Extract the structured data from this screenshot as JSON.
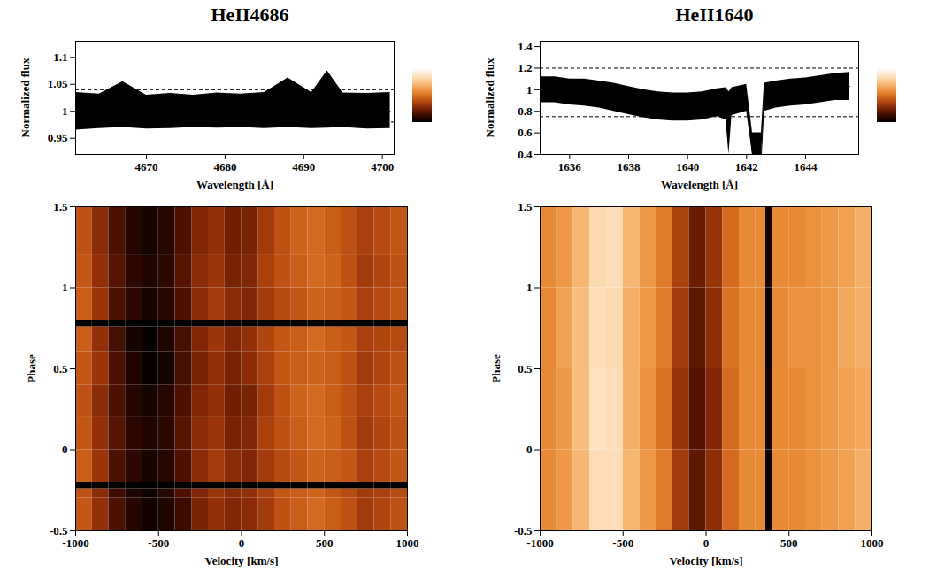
{
  "chart_data": [
    {
      "type": "line",
      "title": "HeII4686",
      "x_label": "Wavelength [Å]",
      "y_label": "Normalized flux",
      "xlim": [
        4661,
        4701.5
      ],
      "xticks": [
        4670,
        4680,
        4690,
        4700
      ],
      "ylim": [
        0.92,
        1.13
      ],
      "yticks": [
        0.95,
        1,
        1.05,
        1.1
      ],
      "x": [
        4661,
        4664,
        4667,
        4670,
        4673,
        4676,
        4679,
        4682,
        4685,
        4688,
        4691,
        4693,
        4695,
        4698,
        4701
      ],
      "values": [
        1.0,
        1.0,
        1.0,
        0.999,
        1.0,
        1.0,
        1.0,
        1.0,
        1.0,
        1.001,
        1.0,
        1.001,
        1.0,
        1.0,
        1.0
      ],
      "lower": [
        0.965,
        0.968,
        0.97,
        0.967,
        0.968,
        0.97,
        0.969,
        0.97,
        0.968,
        0.97,
        0.968,
        0.969,
        0.97,
        0.967,
        0.968
      ],
      "upper": [
        1.035,
        1.032,
        1.055,
        1.03,
        1.033,
        1.03,
        1.034,
        1.032,
        1.035,
        1.062,
        1.035,
        1.075,
        1.034,
        1.033,
        1.035
      ],
      "reference_levels": [
        1.04,
        0.98
      ],
      "color": "#000000"
    },
    {
      "type": "heatmap",
      "x_label": "Velocity [km/s]",
      "y_label": "Phase",
      "xlim": [
        -1000,
        1000
      ],
      "xticks": [
        -1000,
        -500,
        0,
        500,
        1000
      ],
      "ylim": [
        -0.5,
        1.5
      ],
      "yticks": [
        -0.5,
        0,
        0.5,
        1,
        1.5
      ],
      "colorbar_range": [
        0.98,
        1.04
      ],
      "velocity_edges": [
        -1000,
        -900,
        -800,
        -700,
        -600,
        -500,
        -400,
        -300,
        -200,
        -100,
        0,
        100,
        200,
        300,
        400,
        500,
        600,
        700,
        800,
        900,
        1000
      ],
      "phase_edges": [
        -0.5,
        -0.3,
        -0.24,
        -0.2,
        0,
        0.2,
        0.4,
        0.6,
        0.76,
        0.8,
        1.0,
        1.2,
        1.5
      ],
      "cells": [
        [
          1.005,
          0.998,
          0.99,
          0.985,
          0.982,
          0.984,
          0.988,
          0.995,
          0.998,
          0.996,
          0.997,
          1.0,
          1.004,
          1.006,
          1.008,
          1.006,
          1.004,
          1.0,
          1.002,
          1.004
        ],
        [
          1.004,
          0.997,
          0.988,
          0.984,
          0.982,
          0.985,
          0.99,
          0.996,
          0.999,
          0.997,
          0.998,
          1.001,
          1.005,
          1.006,
          1.007,
          1.005,
          1.003,
          1.0,
          1.001,
          1.003
        ],
        [
          0.98,
          0.98,
          0.98,
          0.98,
          0.98,
          0.98,
          0.98,
          0.98,
          0.98,
          0.98,
          0.98,
          0.98,
          0.98,
          0.98,
          0.98,
          0.98,
          0.98,
          0.98,
          0.98,
          0.98
        ],
        [
          1.006,
          0.999,
          0.99,
          0.986,
          0.983,
          0.985,
          0.99,
          0.997,
          1.0,
          0.997,
          0.996,
          1.0,
          1.003,
          1.005,
          1.007,
          1.006,
          1.005,
          1.001,
          1.003,
          1.005
        ],
        [
          1.005,
          0.998,
          0.991,
          0.986,
          0.984,
          0.986,
          0.991,
          0.997,
          0.999,
          0.995,
          0.996,
          1.001,
          1.004,
          1.006,
          1.008,
          1.007,
          1.004,
          1.0,
          1.002,
          1.004
        ],
        [
          1.004,
          0.997,
          0.99,
          0.985,
          0.983,
          0.985,
          0.99,
          0.996,
          0.998,
          0.994,
          0.995,
          1.0,
          1.004,
          1.007,
          1.008,
          1.006,
          1.004,
          1.001,
          1.003,
          1.005
        ],
        [
          1.005,
          0.999,
          0.99,
          0.984,
          0.981,
          0.983,
          0.989,
          0.995,
          0.998,
          0.995,
          0.997,
          1.001,
          1.005,
          1.006,
          1.007,
          1.006,
          1.004,
          1.0,
          1.002,
          1.004
        ],
        [
          1.006,
          0.998,
          0.989,
          0.983,
          0.981,
          0.984,
          0.989,
          0.996,
          0.999,
          0.996,
          0.998,
          1.002,
          1.005,
          1.006,
          1.008,
          1.006,
          1.005,
          1.001,
          1.002,
          1.003
        ],
        [
          0.98,
          0.98,
          0.98,
          0.98,
          0.98,
          0.98,
          0.98,
          0.98,
          0.98,
          0.98,
          0.98,
          0.98,
          0.98,
          0.98,
          0.98,
          0.98,
          0.98,
          0.98,
          0.98,
          0.98
        ],
        [
          1.006,
          0.999,
          0.99,
          0.986,
          0.983,
          0.985,
          0.99,
          0.997,
          1.0,
          0.997,
          0.996,
          1.0,
          1.003,
          1.005,
          1.007,
          1.006,
          1.005,
          1.001,
          1.003,
          1.005
        ],
        [
          1.005,
          0.998,
          0.991,
          0.986,
          0.984,
          0.986,
          0.991,
          0.997,
          0.999,
          0.995,
          0.996,
          1.001,
          1.004,
          1.006,
          1.008,
          1.007,
          1.004,
          1.0,
          1.002,
          1.004
        ],
        [
          1.004,
          0.997,
          0.99,
          0.985,
          0.983,
          0.985,
          0.99,
          0.996,
          0.998,
          0.994,
          0.995,
          1.0,
          1.004,
          1.007,
          1.008,
          1.006,
          1.004,
          1.001,
          1.003,
          1.005
        ]
      ]
    },
    {
      "type": "line",
      "title": "HeII1640",
      "x_label": "Wavelength [Å]",
      "y_label": "Normalized flux",
      "xlim": [
        1635,
        1645.8
      ],
      "xticks": [
        1636,
        1638,
        1640,
        1642,
        1644
      ],
      "ylim": [
        0.4,
        1.45
      ],
      "yticks": [
        0.4,
        0.6,
        0.8,
        1,
        1.2,
        1.4
      ],
      "x": [
        1635,
        1635.5,
        1636,
        1636.5,
        1637,
        1637.5,
        1638,
        1638.5,
        1639,
        1639.5,
        1640,
        1640.5,
        1641,
        1641.3,
        1641.4,
        1641.5,
        1642,
        1642.2,
        1642.3,
        1642.5,
        1642.6,
        1643,
        1643.5,
        1644,
        1644.5,
        1645,
        1645.5
      ],
      "values": [
        1.0,
        0.99,
        0.98,
        0.97,
        0.95,
        0.93,
        0.9,
        0.87,
        0.85,
        0.84,
        0.84,
        0.85,
        0.88,
        0.88,
        0.6,
        0.89,
        0.92,
        0.4,
        0.4,
        0.4,
        0.93,
        0.95,
        0.97,
        0.98,
        1.0,
        1.02,
        1.03
      ],
      "lower": [
        0.88,
        0.88,
        0.86,
        0.85,
        0.83,
        0.8,
        0.77,
        0.74,
        0.72,
        0.71,
        0.71,
        0.72,
        0.75,
        0.72,
        0.4,
        0.76,
        0.8,
        0.4,
        0.4,
        0.4,
        0.8,
        0.83,
        0.85,
        0.86,
        0.88,
        0.9,
        0.9
      ],
      "upper": [
        1.12,
        1.12,
        1.1,
        1.1,
        1.08,
        1.06,
        1.03,
        1.0,
        0.98,
        0.97,
        0.97,
        0.98,
        1.01,
        1.02,
        0.98,
        1.02,
        1.05,
        0.6,
        0.6,
        0.6,
        1.06,
        1.08,
        1.1,
        1.11,
        1.13,
        1.15,
        1.16
      ],
      "reference_levels": [
        1.2,
        0.75
      ],
      "color": "#000000"
    },
    {
      "type": "heatmap",
      "x_label": "Velocity [km/s]",
      "y_label": "Phase",
      "xlim": [
        -1000,
        1000
      ],
      "xticks": [
        -1000,
        -500,
        0,
        500,
        1000
      ],
      "ylim": [
        -0.5,
        1.5
      ],
      "yticks": [
        -0.5,
        0,
        0.5,
        1,
        1.5
      ],
      "colorbar_range": [
        0.75,
        1.2
      ],
      "velocity_edges": [
        -1000,
        -900,
        -800,
        -700,
        -600,
        -500,
        -400,
        -300,
        -200,
        -100,
        0,
        100,
        200,
        300,
        360,
        400,
        500,
        600,
        700,
        800,
        900,
        1000
      ],
      "phase_edges": [
        -0.5,
        0,
        0.5,
        1.0,
        1.5
      ],
      "cells": [
        [
          1.0,
          1.02,
          1.06,
          1.12,
          1.12,
          1.06,
          1.02,
          0.98,
          0.9,
          0.84,
          0.88,
          0.96,
          1.0,
          1.0,
          0.76,
          1.0,
          1.0,
          1.01,
          1.02,
          1.03,
          1.05
        ],
        [
          1.0,
          1.02,
          1.07,
          1.13,
          1.12,
          1.05,
          1.01,
          0.97,
          0.89,
          0.83,
          0.87,
          0.96,
          1.0,
          1.0,
          0.77,
          1.0,
          1.0,
          1.01,
          1.02,
          1.03,
          1.04
        ],
        [
          1.0,
          1.03,
          1.07,
          1.12,
          1.11,
          1.05,
          1.02,
          0.98,
          0.9,
          0.84,
          0.88,
          0.97,
          1.0,
          1.0,
          0.76,
          1.0,
          1.01,
          1.01,
          1.02,
          1.04,
          1.05
        ],
        [
          1.0,
          1.02,
          1.06,
          1.11,
          1.12,
          1.06,
          1.02,
          0.98,
          0.91,
          0.85,
          0.89,
          0.96,
          1.0,
          1.0,
          0.77,
          1.0,
          1.0,
          1.01,
          1.02,
          1.03,
          1.05
        ]
      ]
    }
  ]
}
